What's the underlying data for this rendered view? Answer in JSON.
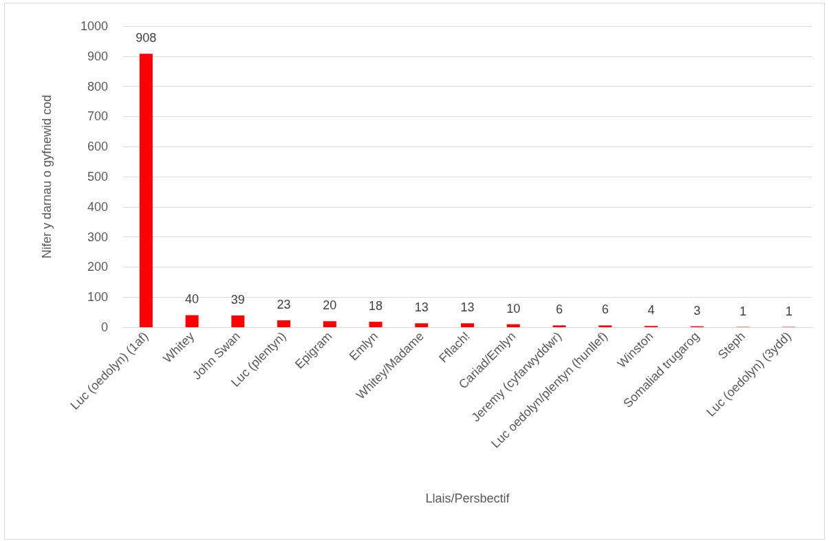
{
  "chart_data": {
    "type": "bar",
    "xlabel": "Llais/Persbectif",
    "ylabel": "Nifer y darnau o gyfnewid cod",
    "categories": [
      "Luc (oedolyn) (1af)",
      "Whitey",
      "John Swan",
      "Luc (plentyn)",
      "Epigram",
      "Emlyn",
      "Whitey/Madame",
      "Fflach!",
      "Cariad/Emlyn",
      "Jeremy (cyfarwyddwr)",
      "Luc oedolyn/plentyn (hunllef)",
      "Winston",
      "Somaliad trugarog",
      "Steph",
      "Luc (oedolyn) (3ydd)"
    ],
    "values": [
      908,
      40,
      39,
      23,
      20,
      18,
      13,
      13,
      10,
      6,
      6,
      4,
      3,
      1,
      1
    ],
    "color": "#ff0000",
    "ylim": [
      0,
      1000
    ],
    "yticks": [
      0,
      100,
      200,
      300,
      400,
      500,
      600,
      700,
      800,
      900,
      1000
    ],
    "grid": "y",
    "data_labels": true
  }
}
